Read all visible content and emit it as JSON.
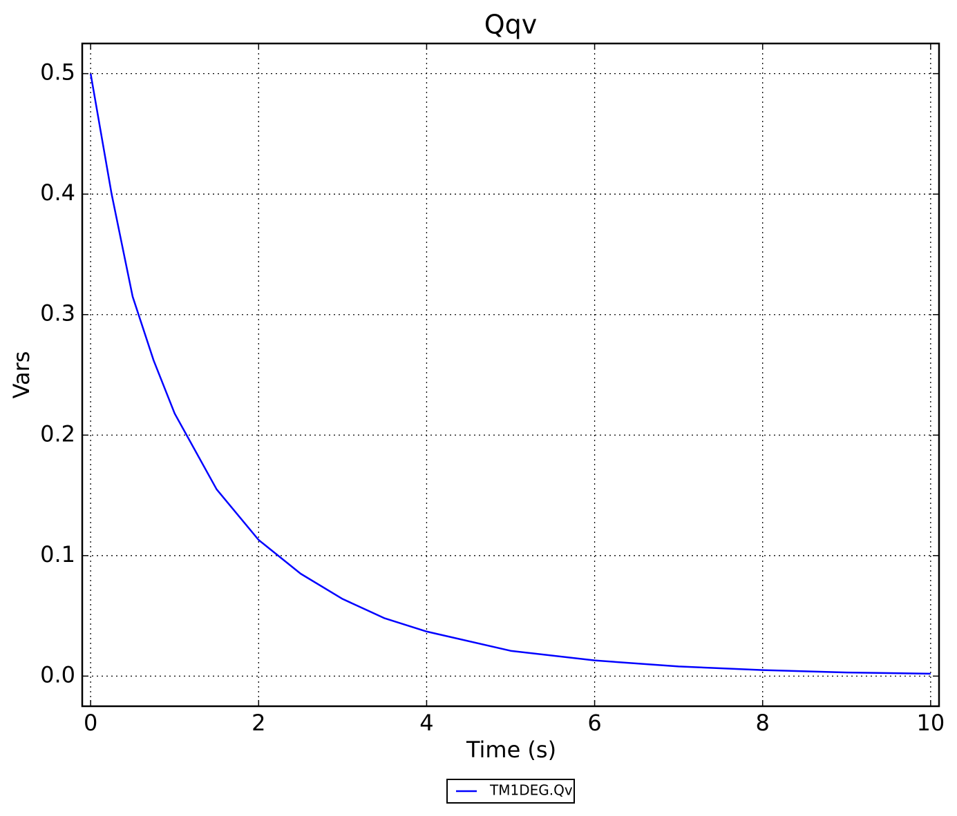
{
  "chart_data": {
    "type": "line",
    "title": "Qqv",
    "x_label": "Time (s)",
    "y_label": "Vars",
    "x": [
      0,
      0.25,
      0.5,
      0.75,
      1,
      1.5,
      2,
      2.5,
      3,
      3.5,
      4,
      5,
      6,
      7,
      8,
      9,
      10
    ],
    "series": [
      {
        "name": "TM1DEG.Qv",
        "color": "#0000ff",
        "values": [
          0.5,
          0.4,
          0.315,
          0.262,
          0.218,
          0.155,
          0.113,
          0.085,
          0.064,
          0.048,
          0.037,
          0.021,
          0.013,
          0.008,
          0.005,
          0.003,
          0.002
        ]
      }
    ],
    "xlim": [
      -0.1,
      10.1
    ],
    "ylim": [
      -0.025,
      0.525
    ],
    "xticks": [
      0,
      2,
      4,
      6,
      8,
      10
    ],
    "yticks": [
      {
        "value": 0,
        "label": "0.0"
      },
      0.1,
      0.2,
      0.3,
      0.4,
      0.5
    ],
    "grid": true,
    "legend": "below"
  }
}
